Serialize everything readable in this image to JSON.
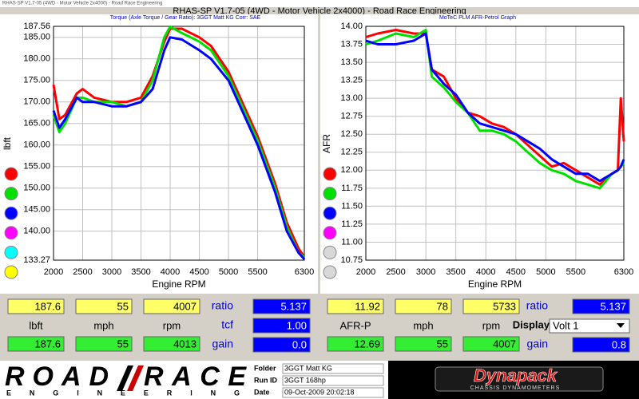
{
  "window_title": "RHAS-SP V1.7-05  (4WD - Motor Vehicle 2x4000) - Road Race Engineering",
  "title": "RHAS-SP V1.7-05  (4WD - Motor Vehicle 2x4000) - Road Race Engineering",
  "chart_data": [
    {
      "type": "line",
      "subtitle": "Torque (Axle Torque / Gear Ratio): 3GGT Matt KG     Corr: SAE",
      "x_label": "Engine RPM",
      "y_label": "lbft",
      "x": [
        2000,
        2100,
        2200,
        2400,
        2500,
        2700,
        3000,
        3250,
        3500,
        3700,
        3900,
        4000,
        4200,
        4500,
        4700,
        5000,
        5300,
        5500,
        5800,
        6000,
        6200,
        6300
      ],
      "series": [
        {
          "color": "#ff0000",
          "values": [
            174,
            166,
            167,
            172,
            173,
            171,
            170,
            170,
            171,
            176,
            184,
            187,
            187,
            185,
            183,
            177,
            168,
            162,
            151,
            142,
            136,
            134
          ]
        },
        {
          "color": "#00e000",
          "values": [
            167,
            163,
            165,
            171,
            171,
            170,
            170,
            169,
            170,
            175,
            185,
            187.5,
            186,
            184,
            182,
            176,
            167,
            161,
            150,
            141,
            135,
            134
          ]
        },
        {
          "color": "#0000ff",
          "values": [
            168,
            164,
            166,
            171,
            170,
            170,
            169,
            169,
            170,
            173,
            182,
            185,
            184.5,
            182,
            180,
            175,
            166,
            160,
            149,
            140,
            135,
            133.5
          ]
        }
      ],
      "xlim": [
        2000,
        6300
      ],
      "xticks": [
        2000,
        2500,
        3000,
        3500,
        4000,
        4500,
        5000,
        5500,
        6300
      ],
      "ylim": [
        133.27,
        187.56
      ],
      "yticks": [
        133.27,
        {
          "value": 140,
          "label": "140.00"
        },
        {
          "value": 145,
          "label": "145.00"
        },
        {
          "value": 150,
          "label": "150.00"
        },
        {
          "value": 155,
          "label": "155.00"
        },
        {
          "value": 160,
          "label": "160.00"
        },
        {
          "value": 165,
          "label": "165.00"
        },
        {
          "value": 170,
          "label": "170.00"
        },
        {
          "value": 175,
          "label": "175.00"
        },
        {
          "value": 180,
          "label": "180.00"
        },
        {
          "value": 185,
          "label": "185.00"
        },
        187.56
      ],
      "grid": true
    },
    {
      "type": "line",
      "subtitle": "MoTeC PLM AFR-Petrol Graph",
      "x_label": "Engine RPM",
      "y_label": "AFR",
      "x": [
        2000,
        2200,
        2500,
        2800,
        3000,
        3100,
        3300,
        3500,
        3700,
        3900,
        4100,
        4300,
        4500,
        4700,
        4900,
        5100,
        5300,
        5500,
        5700,
        5900,
        6100,
        6200,
        6250,
        6300
      ],
      "series": [
        {
          "color": "#ff0000",
          "values": [
            13.85,
            13.9,
            13.95,
            13.9,
            13.9,
            13.4,
            13.3,
            13.0,
            12.8,
            12.75,
            12.65,
            12.6,
            12.5,
            12.35,
            12.2,
            12.05,
            12.1,
            12.0,
            11.9,
            11.8,
            11.95,
            12.0,
            13.0,
            12.4
          ]
        },
        {
          "color": "#00e000",
          "values": [
            13.75,
            13.8,
            13.9,
            13.85,
            13.95,
            13.3,
            13.15,
            12.95,
            12.8,
            12.55,
            12.55,
            12.5,
            12.4,
            12.25,
            12.1,
            12.0,
            11.95,
            11.85,
            11.8,
            11.75,
            11.95,
            12.0,
            12.05,
            12.1
          ]
        },
        {
          "color": "#0000ff",
          "values": [
            13.8,
            13.75,
            13.75,
            13.8,
            13.9,
            13.4,
            13.2,
            13.05,
            12.8,
            12.65,
            12.6,
            12.55,
            12.5,
            12.4,
            12.3,
            12.15,
            12.05,
            11.95,
            11.95,
            11.85,
            11.95,
            12.0,
            12.05,
            12.15
          ]
        }
      ],
      "xlim": [
        2000,
        6300
      ],
      "xticks": [
        2000,
        2500,
        3000,
        3500,
        4000,
        4500,
        5000,
        5500,
        6300
      ],
      "ylim": [
        10.75,
        14
      ],
      "yticks": [
        10.75,
        {
          "value": 11,
          "label": "11.00"
        },
        11.25,
        {
          "value": 11.5,
          "label": "11.50"
        },
        11.75,
        {
          "value": 12,
          "label": "12.00"
        },
        12.25,
        {
          "value": 12.5,
          "label": "12.50"
        },
        12.75,
        {
          "value": 13,
          "label": "13.00"
        },
        13.25,
        {
          "value": 13.5,
          "label": "13.50"
        },
        13.75,
        {
          "value": 14,
          "label": "14.00"
        }
      ],
      "grid": true
    }
  ],
  "readouts": [
    {
      "top": [
        "187.6",
        "55",
        "4007"
      ],
      "labels": [
        "lbft",
        "mph",
        "rpm"
      ],
      "bottom": [
        "187.6",
        "55",
        "4013"
      ],
      "side": [
        {
          "label": "ratio",
          "value": "5.137"
        },
        {
          "label": "tcf",
          "value": "1.00"
        },
        {
          "label": "gain",
          "value": "0.0"
        }
      ]
    },
    {
      "top": [
        "11.92",
        "78",
        "5733"
      ],
      "labels": [
        "AFR-P",
        "mph",
        "rpm"
      ],
      "bottom": [
        "12.69",
        "55",
        "4007"
      ],
      "side": [
        {
          "label": "ratio",
          "value": "5.137"
        },
        {
          "label": "Display",
          "value": "Volt 1"
        },
        {
          "label": "gain",
          "value": "0.8"
        }
      ]
    }
  ],
  "footer": {
    "logo_left": "ROAD",
    "logo_right": "RACE",
    "logo_sub": "ENGINEERING",
    "fields": [
      {
        "label": "Folder",
        "value": "3GGT Matt KG"
      },
      {
        "label": "Run ID",
        "value": "3GGT 168hp"
      },
      {
        "label": "Date",
        "value": "09-Oct-2009  20:02:18"
      }
    ],
    "brand": "Dynapack",
    "brand_sub": "CHASSIS DYNAMOMETERS"
  }
}
